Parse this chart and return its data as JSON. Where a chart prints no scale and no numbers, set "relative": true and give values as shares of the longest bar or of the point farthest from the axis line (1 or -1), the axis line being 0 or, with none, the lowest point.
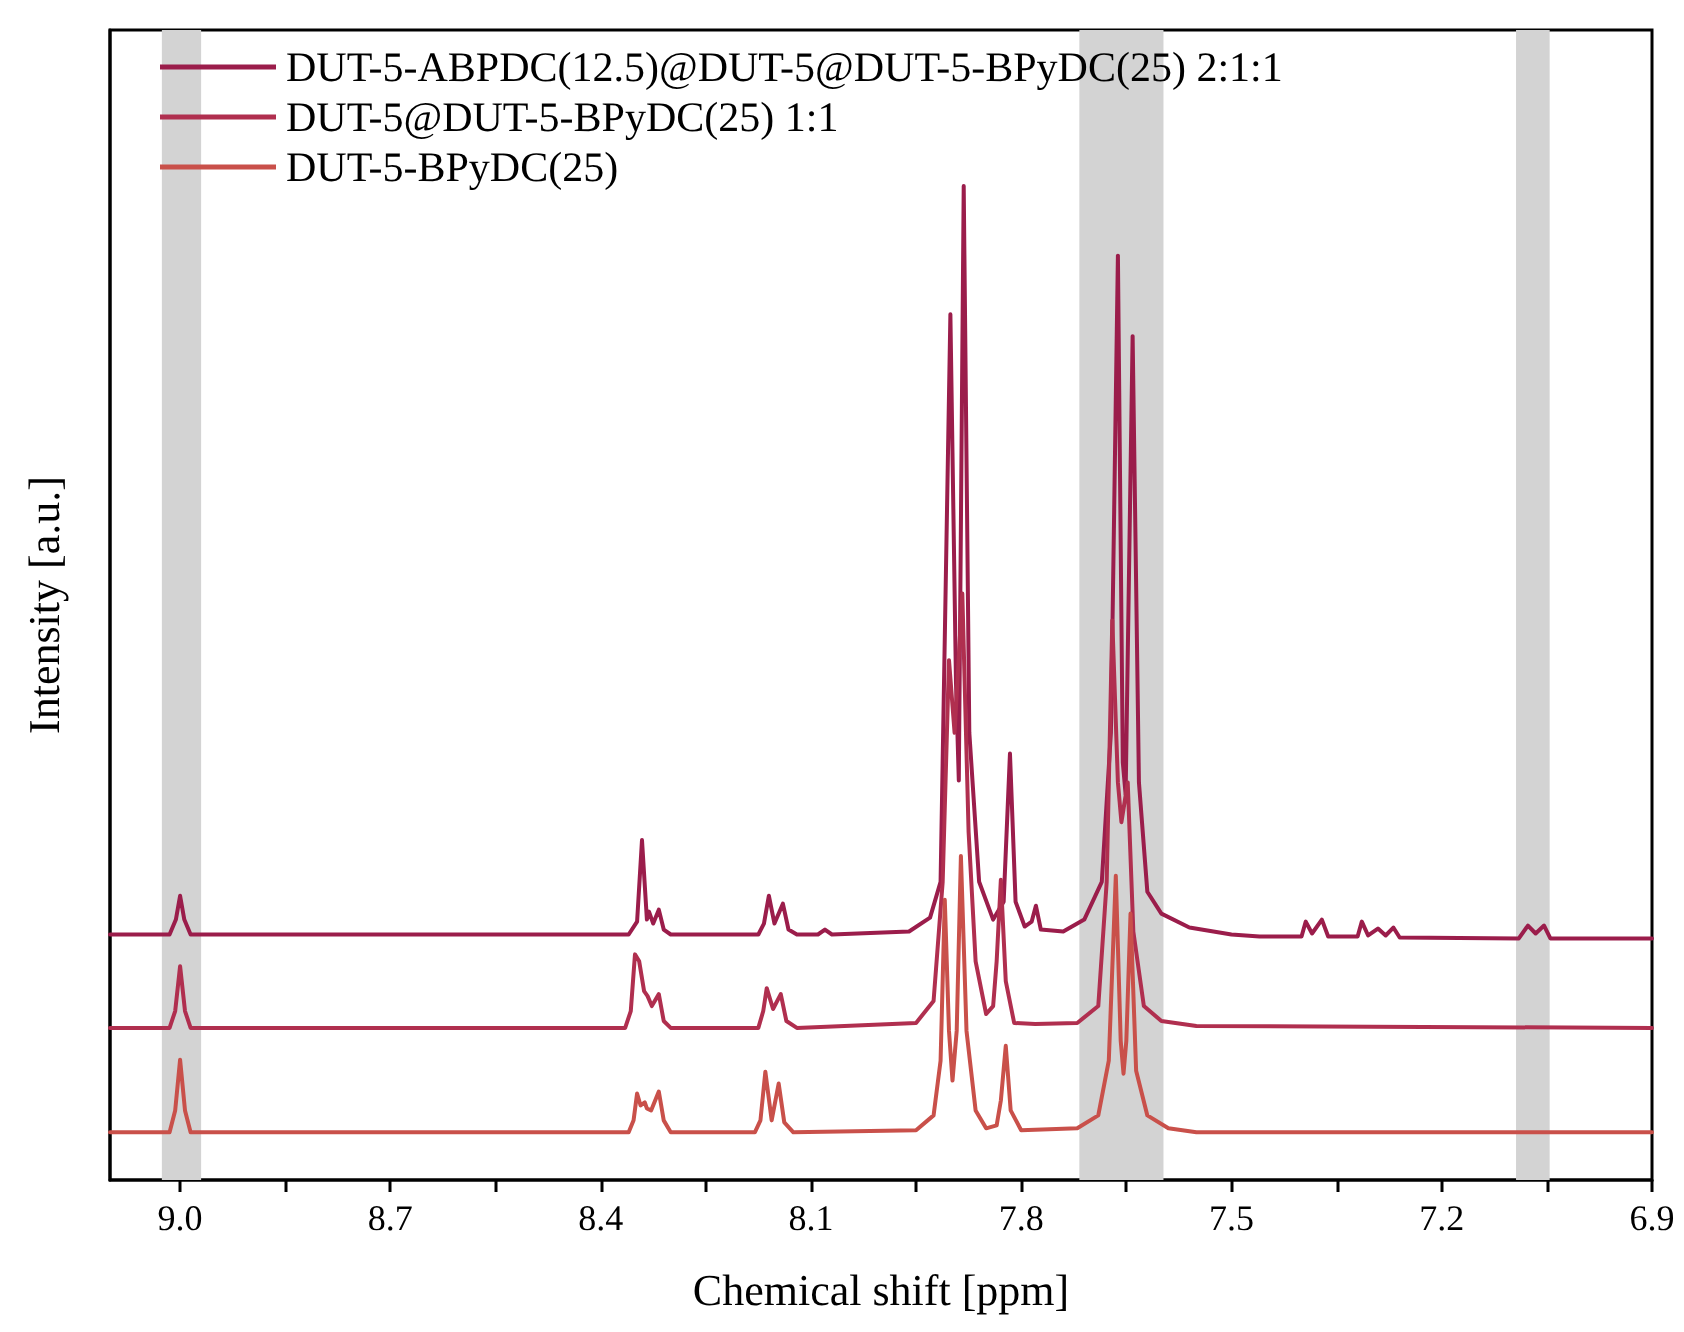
{
  "chart_data": {
    "type": "line",
    "relative": true,
    "xlabel": "Chemical shift [ppm]",
    "ylabel": "Intensity [a.u.]",
    "xlim": [
      9.1,
      6.9
    ],
    "xticks": [
      {
        "value": 9.0,
        "label": "9.0"
      },
      {
        "value": 8.85,
        "label": null
      },
      {
        "value": 8.7,
        "label": "8.7"
      },
      {
        "value": 8.55,
        "label": null
      },
      {
        "value": 8.4,
        "label": "8.4"
      },
      {
        "value": 8.25,
        "label": null
      },
      {
        "value": 8.1,
        "label": "8.1"
      },
      {
        "value": 7.95,
        "label": null
      },
      {
        "value": 7.8,
        "label": "7.8"
      },
      {
        "value": 7.65,
        "label": null
      },
      {
        "value": 7.5,
        "label": "7.5"
      },
      {
        "value": 7.35,
        "label": null
      },
      {
        "value": 7.2,
        "label": "7.2"
      },
      {
        "value": 7.05,
        "label": null
      },
      {
        "value": 6.9,
        "label": "6.9"
      }
    ],
    "tick_labels": "x",
    "grid": false,
    "legend": "top left",
    "marker": "none",
    "line_style": "solid",
    "bands": [
      {
        "axis": "x",
        "from": 9.026,
        "to": 8.97,
        "color": "#d3d3d3"
      },
      {
        "axis": "x",
        "from": 7.717,
        "to": 7.597,
        "color": "#d3d3d3"
      },
      {
        "axis": "x",
        "from": 7.094,
        "to": 7.046,
        "color": "#d3d3d3"
      }
    ],
    "series": [
      {
        "name": "DUT-5-ABPDC(12.5)@DUT-5@DUT-5-BPyDC(25) 2:1:1",
        "color": "#9b1d4b",
        "x": [
          9.1,
          9.015,
          9.006,
          9.0,
          8.994,
          8.985,
          8.36,
          8.348,
          8.341,
          8.334,
          8.331,
          8.325,
          8.317,
          8.31,
          8.3,
          8.175,
          8.167,
          8.16,
          8.152,
          8.14,
          8.132,
          8.12,
          8.09,
          8.08,
          8.07,
          7.96,
          7.93,
          7.915,
          7.901,
          7.893,
          7.889,
          7.882,
          7.874,
          7.86,
          7.84,
          7.825,
          7.816,
          7.808,
          7.795,
          7.785,
          7.779,
          7.772,
          7.74,
          7.71,
          7.685,
          7.672,
          7.662,
          7.655,
          7.651,
          7.641,
          7.632,
          7.62,
          7.6,
          7.56,
          7.5,
          7.46,
          7.4,
          7.394,
          7.385,
          7.371,
          7.362,
          7.32,
          7.314,
          7.305,
          7.291,
          7.28,
          7.269,
          7.26,
          7.09,
          7.077,
          7.066,
          7.054,
          7.045,
          6.9
        ],
        "values": [
          0.247,
          0.247,
          0.262,
          0.286,
          0.262,
          0.247,
          0.247,
          0.26,
          0.342,
          0.262,
          0.27,
          0.258,
          0.272,
          0.252,
          0.247,
          0.247,
          0.258,
          0.286,
          0.258,
          0.278,
          0.252,
          0.247,
          0.247,
          0.252,
          0.247,
          0.25,
          0.264,
          0.3,
          0.871,
          0.5,
          0.402,
          1.0,
          0.45,
          0.3,
          0.262,
          0.28,
          0.429,
          0.28,
          0.255,
          0.26,
          0.276,
          0.252,
          0.25,
          0.262,
          0.3,
          0.45,
          0.93,
          0.42,
          0.388,
          0.849,
          0.4,
          0.29,
          0.268,
          0.254,
          0.247,
          0.245,
          0.245,
          0.26,
          0.248,
          0.262,
          0.245,
          0.245,
          0.26,
          0.246,
          0.253,
          0.246,
          0.254,
          0.244,
          0.243,
          0.256,
          0.248,
          0.256,
          0.243,
          0.243
        ]
      },
      {
        "name": "DUT-5@DUT-5-BPyDC(25) 1:1",
        "color": "#b02f4f",
        "x": [
          9.1,
          9.015,
          9.007,
          9.0,
          8.993,
          8.985,
          8.365,
          8.357,
          8.351,
          8.345,
          8.338,
          8.333,
          8.327,
          8.317,
          8.31,
          8.3,
          8.175,
          8.168,
          8.163,
          8.154,
          8.143,
          8.135,
          8.12,
          7.95,
          7.925,
          7.912,
          7.903,
          7.895,
          7.884,
          7.875,
          7.865,
          7.85,
          7.84,
          7.835,
          7.829,
          7.822,
          7.81,
          7.78,
          7.72,
          7.69,
          7.678,
          7.67,
          7.662,
          7.657,
          7.648,
          7.64,
          7.625,
          7.6,
          7.55,
          6.9
        ],
        "values": [
          0.153,
          0.153,
          0.17,
          0.215,
          0.17,
          0.153,
          0.153,
          0.17,
          0.227,
          0.22,
          0.19,
          0.185,
          0.175,
          0.187,
          0.16,
          0.153,
          0.153,
          0.17,
          0.193,
          0.172,
          0.187,
          0.16,
          0.153,
          0.158,
          0.18,
          0.3,
          0.523,
          0.45,
          0.59,
          0.35,
          0.22,
          0.167,
          0.175,
          0.22,
          0.302,
          0.2,
          0.158,
          0.157,
          0.158,
          0.175,
          0.3,
          0.563,
          0.4,
          0.36,
          0.4,
          0.25,
          0.175,
          0.16,
          0.155,
          0.153
        ]
      },
      {
        "name": "DUT-5-BPyDC(25)",
        "color": "#c9504a",
        "x": [
          9.1,
          9.015,
          9.007,
          9.0,
          8.993,
          8.985,
          8.36,
          8.353,
          8.348,
          8.343,
          8.337,
          8.334,
          8.328,
          8.317,
          8.31,
          8.3,
          8.18,
          8.172,
          8.165,
          8.156,
          8.146,
          8.138,
          8.125,
          7.95,
          7.925,
          7.915,
          7.909,
          7.903,
          7.898,
          7.892,
          7.886,
          7.878,
          7.865,
          7.85,
          7.835,
          7.829,
          7.822,
          7.815,
          7.8,
          7.72,
          7.69,
          7.675,
          7.665,
          7.658,
          7.654,
          7.65,
          7.644,
          7.636,
          7.62,
          7.59,
          7.55,
          6.9
        ],
        "values": [
          0.048,
          0.048,
          0.07,
          0.121,
          0.07,
          0.048,
          0.048,
          0.06,
          0.087,
          0.075,
          0.078,
          0.072,
          0.07,
          0.089,
          0.06,
          0.048,
          0.048,
          0.06,
          0.109,
          0.06,
          0.097,
          0.058,
          0.048,
          0.05,
          0.065,
          0.12,
          0.282,
          0.15,
          0.1,
          0.15,
          0.326,
          0.15,
          0.07,
          0.052,
          0.055,
          0.08,
          0.135,
          0.07,
          0.05,
          0.052,
          0.065,
          0.12,
          0.306,
          0.14,
          0.107,
          0.14,
          0.268,
          0.11,
          0.065,
          0.052,
          0.048,
          0.048
        ]
      }
    ]
  }
}
